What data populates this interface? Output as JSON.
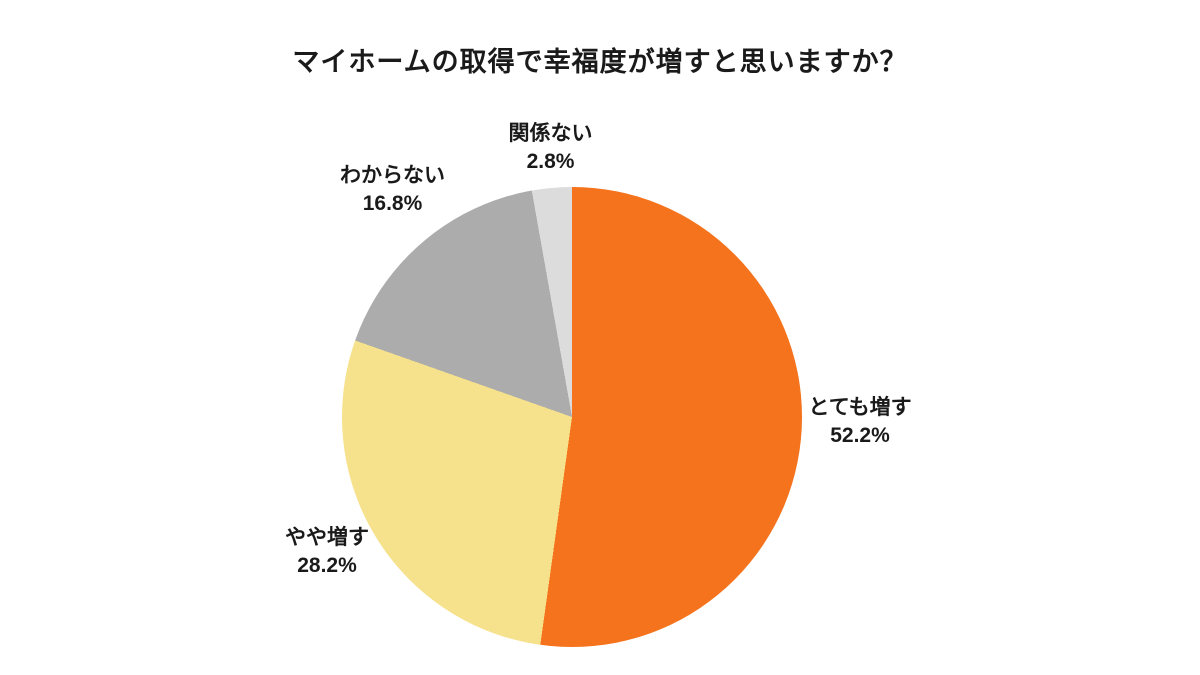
{
  "chart_data": {
    "type": "pie",
    "title": "マイホームの取得で幸福度が増すと思いますか？",
    "start_angle_deg": 0,
    "direction": "clockwise",
    "legend_position": "none",
    "labels_position": "outside",
    "background_color": "#ffffff",
    "slices": [
      {
        "label": "とても増す",
        "value": 52.2,
        "percent_label": "52.2%",
        "color": "#F4731C"
      },
      {
        "label": "やや増す",
        "value": 28.2,
        "percent_label": "28.2%",
        "color": "#F6E18C"
      },
      {
        "label": "わからない",
        "value": 16.8,
        "percent_label": "16.8%",
        "color": "#ACACAC"
      },
      {
        "label": "関係ない",
        "value": 2.8,
        "percent_label": "2.8%",
        "color": "#DCDCDC"
      }
    ]
  }
}
